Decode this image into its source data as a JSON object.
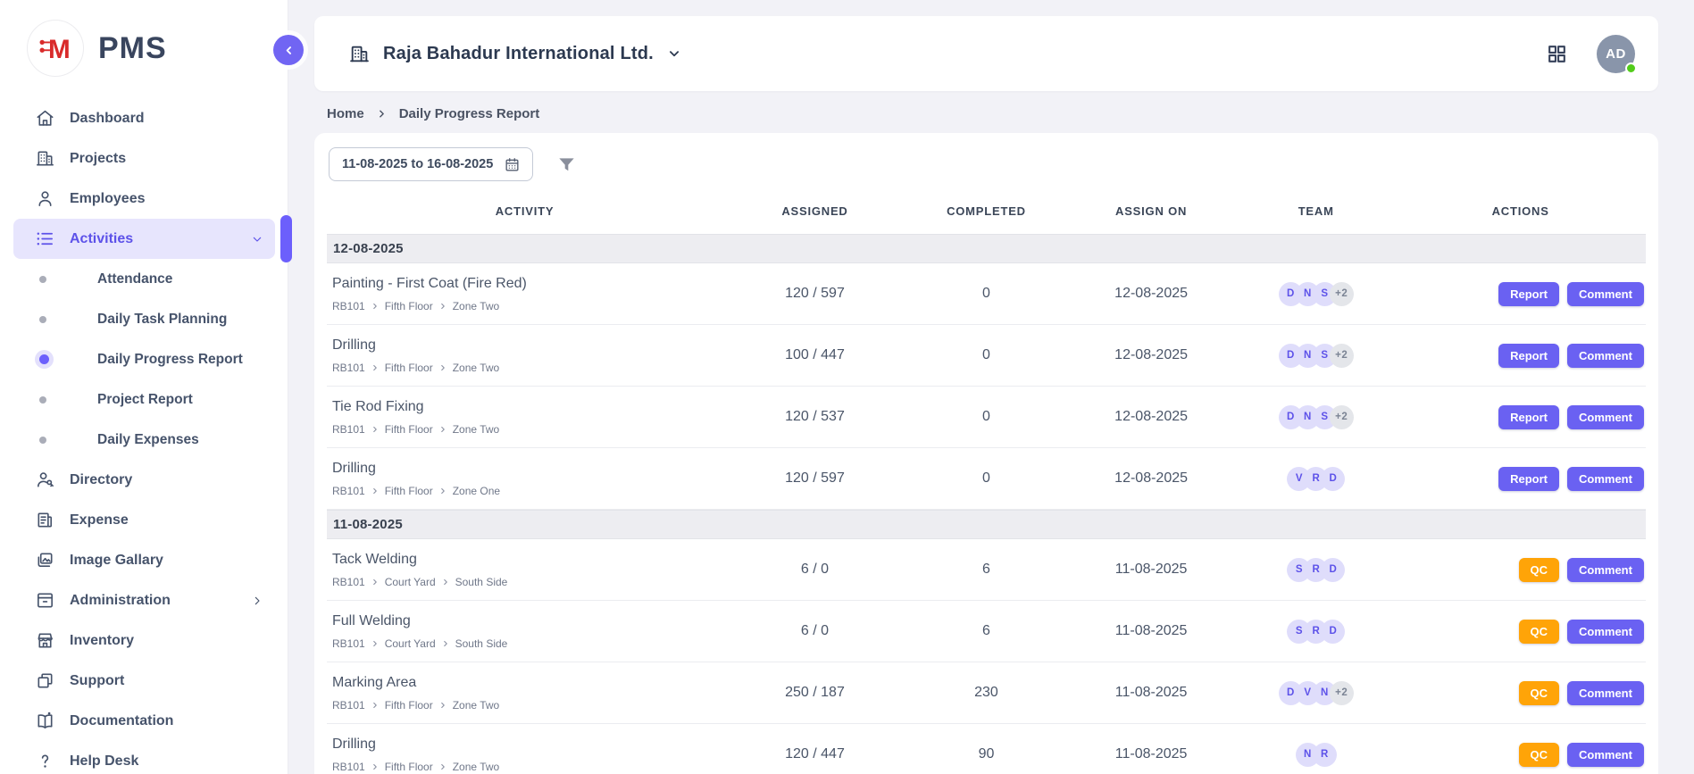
{
  "brand": {
    "name": "PMS",
    "logo_letter": "M",
    "logo_color": "#D92B2B"
  },
  "sidebar": {
    "items": [
      {
        "id": "dashboard",
        "label": "Dashboard",
        "icon": "home-icon"
      },
      {
        "id": "projects",
        "label": "Projects",
        "icon": "building-icon"
      },
      {
        "id": "employees",
        "label": "Employees",
        "icon": "user-icon"
      },
      {
        "id": "activities",
        "label": "Activities",
        "icon": "list-icon",
        "active": true,
        "expanded": true,
        "children": [
          {
            "id": "attendance",
            "label": "Attendance",
            "active": false
          },
          {
            "id": "daily-task-planning",
            "label": "Daily Task Planning",
            "active": false
          },
          {
            "id": "daily-progress-report",
            "label": "Daily Progress Report",
            "active": true
          },
          {
            "id": "project-report",
            "label": "Project Report",
            "active": false
          },
          {
            "id": "daily-expenses",
            "label": "Daily Expenses",
            "active": false
          }
        ]
      },
      {
        "id": "directory",
        "label": "Directory",
        "icon": "user-key-icon"
      },
      {
        "id": "expense",
        "label": "Expense",
        "icon": "receipt-icon"
      },
      {
        "id": "image-gallary",
        "label": "Image Gallary",
        "icon": "image-icon"
      },
      {
        "id": "administration",
        "label": "Administration",
        "icon": "archive-icon",
        "has_submenu": true
      },
      {
        "id": "inventory",
        "label": "Inventory",
        "icon": "store-icon"
      },
      {
        "id": "support",
        "label": "Support",
        "icon": "copy-icon"
      },
      {
        "id": "documentation",
        "label": "Documentation",
        "icon": "book-icon"
      },
      {
        "id": "help-desk",
        "label": "Help Desk",
        "icon": "question-icon"
      }
    ]
  },
  "header": {
    "company_name": "Raja Bahadur International Ltd.",
    "avatar_initials": "AD"
  },
  "breadcrumb": {
    "items": [
      "Home",
      "Daily Progress Report"
    ]
  },
  "filter_bar": {
    "date_range_value": "11-08-2025 to 16-08-2025"
  },
  "table": {
    "columns": [
      "ACTIVITY",
      "ASSIGNED",
      "COMPLETED",
      "ASSIGN ON",
      "TEAM",
      "ACTIONS"
    ],
    "groups": [
      {
        "date": "12-08-2025",
        "rows": [
          {
            "activity": "Painting - First Coat (Fire Red)",
            "path": [
              "RB101",
              "Fifth Floor",
              "Zone Two"
            ],
            "assigned": "120 / 597",
            "completed": "0",
            "assign_on": "12-08-2025",
            "team": [
              "D",
              "N",
              "S"
            ],
            "team_extra": "+2",
            "actions": [
              {
                "label": "Report",
                "style": "purple"
              },
              {
                "label": "Comment",
                "style": "purple"
              }
            ]
          },
          {
            "activity": "Drilling",
            "path": [
              "RB101",
              "Fifth Floor",
              "Zone Two"
            ],
            "assigned": "100 / 447",
            "completed": "0",
            "assign_on": "12-08-2025",
            "team": [
              "D",
              "N",
              "S"
            ],
            "team_extra": "+2",
            "actions": [
              {
                "label": "Report",
                "style": "purple"
              },
              {
                "label": "Comment",
                "style": "purple"
              }
            ]
          },
          {
            "activity": "Tie Rod Fixing",
            "path": [
              "RB101",
              "Fifth Floor",
              "Zone Two"
            ],
            "assigned": "120 / 537",
            "completed": "0",
            "assign_on": "12-08-2025",
            "team": [
              "D",
              "N",
              "S"
            ],
            "team_extra": "+2",
            "actions": [
              {
                "label": "Report",
                "style": "purple"
              },
              {
                "label": "Comment",
                "style": "purple"
              }
            ]
          },
          {
            "activity": "Drilling",
            "path": [
              "RB101",
              "Fifth Floor",
              "Zone One"
            ],
            "assigned": "120 / 597",
            "completed": "0",
            "assign_on": "12-08-2025",
            "team": [
              "V",
              "R",
              "D"
            ],
            "team_extra": null,
            "actions": [
              {
                "label": "Report",
                "style": "purple"
              },
              {
                "label": "Comment",
                "style": "purple"
              }
            ]
          }
        ]
      },
      {
        "date": "11-08-2025",
        "rows": [
          {
            "activity": "Tack Welding",
            "path": [
              "RB101",
              "Court Yard",
              "South Side"
            ],
            "assigned": "6 / 0",
            "completed": "6",
            "assign_on": "11-08-2025",
            "team": [
              "S",
              "R",
              "D"
            ],
            "team_extra": null,
            "actions": [
              {
                "label": "QC",
                "style": "orange"
              },
              {
                "label": "Comment",
                "style": "purple"
              }
            ]
          },
          {
            "activity": "Full Welding",
            "path": [
              "RB101",
              "Court Yard",
              "South Side"
            ],
            "assigned": "6 / 0",
            "completed": "6",
            "assign_on": "11-08-2025",
            "team": [
              "S",
              "R",
              "D"
            ],
            "team_extra": null,
            "actions": [
              {
                "label": "QC",
                "style": "orange"
              },
              {
                "label": "Comment",
                "style": "purple"
              }
            ]
          },
          {
            "activity": "Marking Area",
            "path": [
              "RB101",
              "Fifth Floor",
              "Zone Two"
            ],
            "assigned": "250 / 187",
            "completed": "230",
            "assign_on": "11-08-2025",
            "team": [
              "D",
              "V",
              "N"
            ],
            "team_extra": "+2",
            "actions": [
              {
                "label": "QC",
                "style": "orange"
              },
              {
                "label": "Comment",
                "style": "purple"
              }
            ]
          },
          {
            "activity": "Drilling",
            "path": [
              "RB101",
              "Fifth Floor",
              "Zone Two"
            ],
            "assigned": "120 / 447",
            "completed": "90",
            "assign_on": "11-08-2025",
            "team": [
              "N",
              "R"
            ],
            "team_extra": null,
            "actions": [
              {
                "label": "QC",
                "style": "orange"
              },
              {
                "label": "Comment",
                "style": "purple"
              }
            ]
          }
        ]
      }
    ]
  },
  "colors": {
    "accent_purple": "#6A61F2",
    "accent_orange": "#FFA408",
    "brand_red": "#D92B2B",
    "status_green": "#52CC1A",
    "team_avatar_bg": "#DFDDFB",
    "avatar_bg": "#8995AA",
    "page_bg": "#F2F2F7"
  }
}
